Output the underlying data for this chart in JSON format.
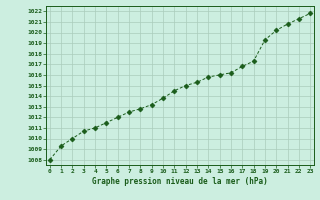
{
  "x": [
    0,
    1,
    2,
    3,
    4,
    5,
    6,
    7,
    8,
    9,
    10,
    11,
    12,
    13,
    14,
    15,
    16,
    17,
    18,
    19,
    20,
    21,
    22,
    23
  ],
  "y": [
    1008.0,
    1009.3,
    1010.0,
    1010.7,
    1011.0,
    1011.5,
    1012.0,
    1012.5,
    1012.8,
    1013.2,
    1013.8,
    1014.5,
    1015.0,
    1015.3,
    1015.8,
    1016.0,
    1016.2,
    1016.8,
    1017.3,
    1019.3,
    1020.2,
    1020.8,
    1021.3,
    1021.8
  ],
  "line_color": "#1a5c1a",
  "marker": "D",
  "marker_size": 2.5,
  "bg_color": "#cceee0",
  "grid_color": "#aaccbb",
  "title": "Graphe pression niveau de la mer (hPa)",
  "ylabel_min": 1008,
  "ylabel_max": 1022,
  "ylabel_step": 1,
  "xlim": [
    -0.3,
    23.3
  ],
  "ylim": [
    1007.5,
    1022.5
  ]
}
